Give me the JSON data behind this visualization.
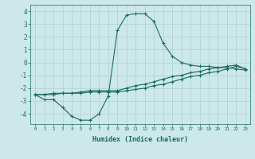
{
  "xlabel": "Humidex (Indice chaleur)",
  "x": [
    0,
    1,
    2,
    3,
    4,
    5,
    6,
    7,
    8,
    9,
    10,
    11,
    12,
    13,
    14,
    15,
    16,
    17,
    18,
    19,
    20,
    21,
    22,
    23
  ],
  "line1": [
    -2.5,
    -2.9,
    -2.9,
    -3.5,
    -4.2,
    -4.5,
    -4.5,
    -4.0,
    -2.6,
    2.5,
    3.7,
    3.8,
    3.8,
    3.2,
    1.5,
    0.5,
    0.0,
    -0.2,
    -0.3,
    -0.3,
    -0.4,
    -0.4,
    -0.5,
    -0.6
  ],
  "line2": [
    -2.5,
    -2.5,
    -2.4,
    -2.4,
    -2.4,
    -2.3,
    -2.2,
    -2.2,
    -2.2,
    -2.2,
    -2.0,
    -1.8,
    -1.7,
    -1.5,
    -1.3,
    -1.1,
    -1.0,
    -0.8,
    -0.7,
    -0.5,
    -0.4,
    -0.3,
    -0.2,
    -0.5
  ],
  "line3": [
    -2.5,
    -2.5,
    -2.5,
    -2.4,
    -2.4,
    -2.4,
    -2.3,
    -2.3,
    -2.3,
    -2.3,
    -2.2,
    -2.1,
    -2.0,
    -1.8,
    -1.7,
    -1.5,
    -1.3,
    -1.1,
    -1.0,
    -0.8,
    -0.7,
    -0.5,
    -0.3,
    -0.5
  ],
  "line_color": "#1a6b5a",
  "bg_color": "#cce8e8",
  "grid_color": "#afd0d0",
  "ylim": [
    -4.8,
    4.5
  ],
  "xlim": [
    -0.5,
    23.5
  ],
  "yticks": [
    -4,
    -3,
    -2,
    -1,
    0,
    1,
    2,
    3,
    4
  ],
  "xticks": [
    0,
    1,
    2,
    3,
    4,
    5,
    6,
    7,
    8,
    9,
    10,
    11,
    12,
    13,
    14,
    15,
    16,
    17,
    18,
    19,
    20,
    21,
    22,
    23
  ]
}
